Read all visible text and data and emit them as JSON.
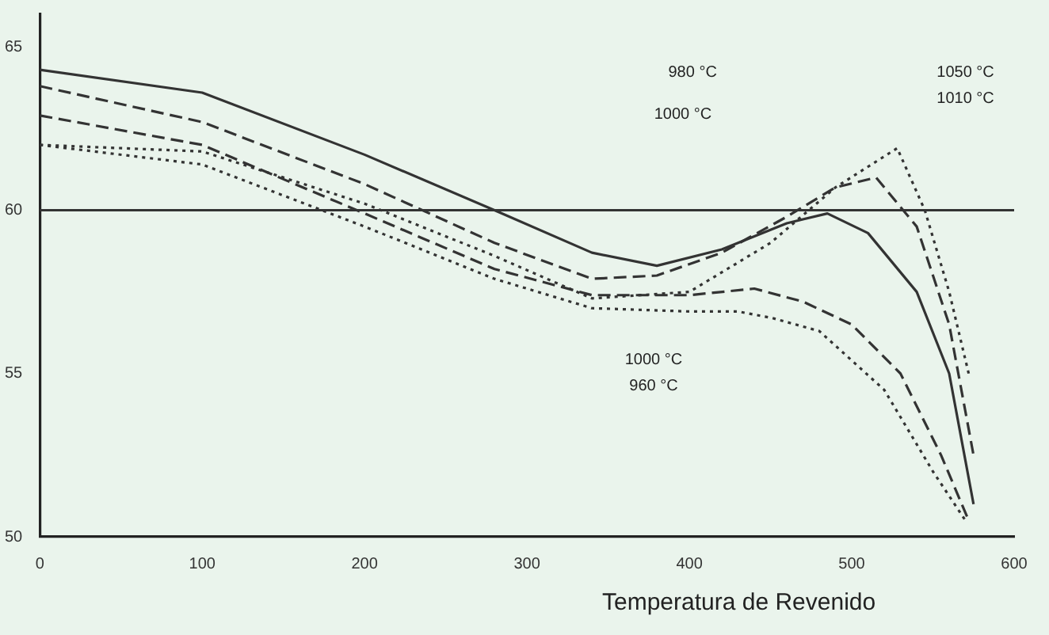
{
  "chart_data": {
    "type": "line",
    "xlabel": "Temperatura de Revenido",
    "xlim": [
      0,
      600
    ],
    "xticks": [
      0,
      100,
      200,
      300,
      400,
      500,
      600
    ],
    "ylim": [
      50,
      66
    ],
    "yticks": [
      50,
      55,
      60,
      65
    ],
    "grid": false,
    "legend": false,
    "marker": "none",
    "ref_lines": [
      {
        "axis": "y",
        "value": 60
      }
    ],
    "annotations": [
      "980 °C",
      "1050 °C",
      "1010 °C",
      "1000 °C",
      "1000 °C",
      "960 °C"
    ],
    "series": [
      {
        "color": "#333333",
        "line_style": "solid",
        "x": [
          0,
          100,
          200,
          280,
          340,
          380,
          420,
          460,
          485,
          510,
          540,
          560,
          575
        ],
        "values": [
          64.3,
          63.6,
          61.7,
          60,
          58.7,
          58.3,
          58.8,
          59.6,
          59.9,
          59.3,
          57.5,
          55,
          51
        ]
      },
      {
        "color": "#333333",
        "line_style": "dashed",
        "x": [
          0,
          100,
          200,
          280,
          340,
          380,
          420,
          460,
          490,
          515,
          540,
          560,
          575
        ],
        "values": [
          63.8,
          62.7,
          60.8,
          59,
          57.9,
          58,
          58.7,
          59.8,
          60.7,
          61,
          59.5,
          56.5,
          52.5
        ]
      },
      {
        "color": "#333333",
        "line_style": "dotted",
        "x": [
          0,
          100,
          200,
          280,
          340,
          400,
          450,
          490,
          528,
          545,
          560,
          572
        ],
        "values": [
          62,
          61.8,
          60.2,
          58.6,
          57.3,
          57.5,
          59,
          60.7,
          61.9,
          60,
          57.5,
          55
        ]
      },
      {
        "color": "#333333",
        "line_style": "dashed",
        "x": [
          0,
          100,
          200,
          280,
          340,
          400,
          440,
          470,
          500,
          530,
          555,
          572
        ],
        "values": [
          62.9,
          62,
          59.9,
          58.2,
          57.4,
          57.4,
          57.6,
          57.2,
          56.5,
          55,
          52.5,
          50.5
        ]
      },
      {
        "color": "#333333",
        "line_style": "dotted",
        "x": [
          0,
          100,
          200,
          280,
          340,
          400,
          430,
          451,
          480,
          520,
          550,
          570
        ],
        "values": [
          62,
          61.4,
          59.5,
          57.9,
          57,
          56.9,
          56.9,
          56.7,
          56.3,
          54.5,
          52,
          50.5
        ]
      }
    ]
  }
}
